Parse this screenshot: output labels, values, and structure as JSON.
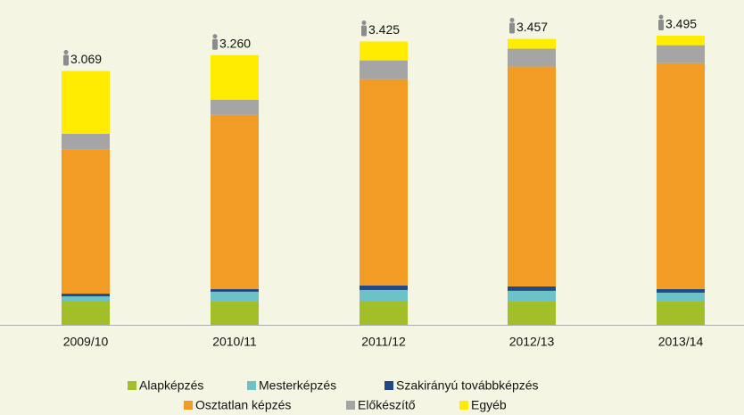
{
  "chart_data": {
    "type": "stacked-bar",
    "categories": [
      "2009/10",
      "2010/11",
      "2011/12",
      "2012/13",
      "2013/14"
    ],
    "series": [
      {
        "name": "Alapképzés",
        "color": "#a2bf2a",
        "values": [
          291,
          281,
          291,
          281,
          281
        ]
      },
      {
        "name": "Mesterképzés",
        "color": "#6cc2c6",
        "values": [
          54,
          119,
          130,
          130,
          108
        ]
      },
      {
        "name": "Szakirányú továbbképzés",
        "color": "#1f4a86",
        "values": [
          32,
          32,
          54,
          54,
          43
        ]
      },
      {
        "name": "Osztatlan képzés",
        "color": "#f39c25",
        "values": [
          1739,
          2106,
          2495,
          2657,
          2732
        ]
      },
      {
        "name": "Előkészítő",
        "color": "#a5a5a5",
        "values": [
          194,
          184,
          227,
          216,
          216
        ]
      },
      {
        "name": "Egyéb",
        "color": "#ffec00",
        "values": [
          759,
          538,
          228,
          119,
          115
        ]
      }
    ],
    "totals": {
      "values": [
        3069,
        3260,
        3425,
        3457,
        3495
      ],
      "value_labels": [
        "3.069",
        "3.260",
        "3.425",
        "3.457",
        "3.495"
      ]
    }
  }
}
